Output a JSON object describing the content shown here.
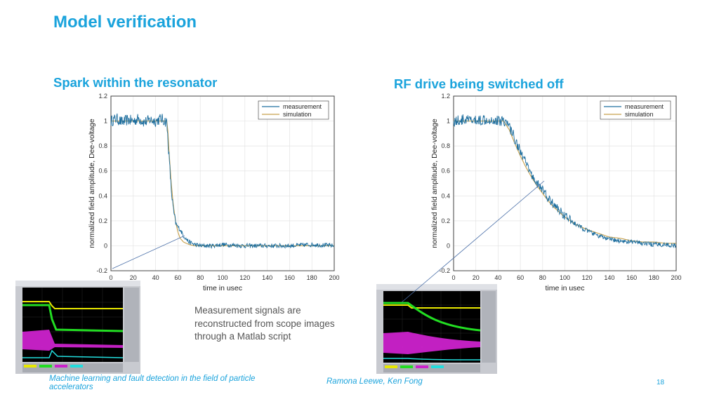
{
  "slide": {
    "title": "Model verification",
    "note": "Measurement signals are reconstructed from scope images through a Matlab script",
    "footer_left": "Machine learning and fault detection in the field of particle accelerators",
    "footer_authors": "Ramona Leewe, Ken Fong",
    "page_number": "18"
  },
  "colors": {
    "accent": "#1aa3dc",
    "measurement": "#1f6f9f",
    "simulation": "#c8a04a"
  },
  "chart_data": [
    {
      "type": "line",
      "heading": "Spark within the resonator",
      "xlabel": "time in usec",
      "ylabel": "normalized field amplitude, Dee-voltage",
      "xlim": [
        0,
        200
      ],
      "ylim": [
        -0.2,
        1.2
      ],
      "x_ticks": [
        0,
        20,
        40,
        60,
        80,
        100,
        120,
        140,
        160,
        180,
        200
      ],
      "y_ticks": [
        -0.2,
        0,
        0.2,
        0.4,
        0.6,
        0.8,
        1,
        1.2
      ],
      "grid": true,
      "legend_position": "top-right",
      "series": [
        {
          "name": "measurement",
          "x": [
            0,
            5,
            10,
            15,
            20,
            25,
            30,
            35,
            40,
            45,
            50,
            52,
            54,
            56,
            58,
            60,
            62,
            65,
            70,
            75,
            80,
            90,
            100,
            120,
            140,
            160,
            180,
            200
          ],
          "y": [
            1.0,
            1.02,
            0.99,
            1.01,
            1.0,
            1.02,
            0.99,
            1.01,
            1.0,
            1.02,
            0.99,
            0.72,
            0.45,
            0.28,
            0.18,
            0.15,
            0.13,
            0.08,
            0.03,
            0.01,
            0.0,
            0.0,
            0.01,
            0.0,
            0.0,
            0.0,
            0.01,
            0.0
          ]
        },
        {
          "name": "simulation",
          "x": [
            0,
            10,
            20,
            30,
            40,
            50,
            51,
            52,
            54,
            56,
            58,
            60,
            62,
            65,
            70,
            75,
            80,
            90,
            100,
            120,
            140,
            160,
            180,
            200
          ],
          "y": [
            1.0,
            1.0,
            1.0,
            1.0,
            1.0,
            1.0,
            0.92,
            0.76,
            0.5,
            0.32,
            0.19,
            0.11,
            0.06,
            0.03,
            0.01,
            0.0,
            0.0,
            0.0,
            0.0,
            0.0,
            0.0,
            0.0,
            0.0,
            0.0
          ]
        }
      ]
    },
    {
      "type": "line",
      "heading": "RF drive being switched off",
      "xlabel": "time in usec",
      "ylabel": "normalized field amplitude, Dee-voltage",
      "xlim": [
        0,
        200
      ],
      "ylim": [
        -0.2,
        1.2
      ],
      "x_ticks": [
        0,
        20,
        40,
        60,
        80,
        100,
        120,
        140,
        160,
        180,
        200
      ],
      "y_ticks": [
        -0.2,
        0,
        0.2,
        0.4,
        0.6,
        0.8,
        1,
        1.2
      ],
      "grid": true,
      "legend_position": "top-right",
      "series": [
        {
          "name": "measurement",
          "x": [
            0,
            10,
            20,
            30,
            40,
            45,
            50,
            55,
            60,
            65,
            70,
            75,
            80,
            85,
            90,
            100,
            110,
            120,
            130,
            140,
            150,
            160,
            170,
            180,
            190,
            200
          ],
          "y": [
            1.0,
            1.01,
            1.0,
            1.02,
            1.0,
            1.01,
            0.96,
            0.86,
            0.76,
            0.66,
            0.57,
            0.5,
            0.45,
            0.38,
            0.33,
            0.24,
            0.17,
            0.12,
            0.08,
            0.05,
            0.04,
            0.03,
            0.02,
            0.01,
            0.01,
            0.0
          ]
        },
        {
          "name": "simulation",
          "x": [
            0,
            10,
            20,
            30,
            40,
            45,
            50,
            55,
            60,
            65,
            70,
            75,
            80,
            85,
            90,
            100,
            110,
            120,
            130,
            140,
            150,
            160,
            170,
            180,
            190,
            200
          ],
          "y": [
            1.0,
            1.0,
            1.0,
            1.0,
            1.0,
            1.0,
            0.93,
            0.82,
            0.72,
            0.63,
            0.55,
            0.48,
            0.42,
            0.36,
            0.31,
            0.23,
            0.17,
            0.13,
            0.1,
            0.07,
            0.06,
            0.04,
            0.03,
            0.03,
            0.02,
            0.02
          ]
        }
      ]
    }
  ]
}
